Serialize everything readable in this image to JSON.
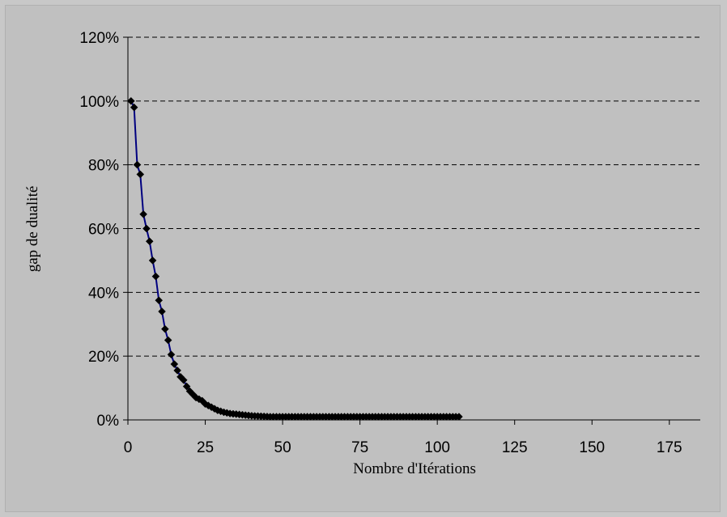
{
  "chart_data": {
    "type": "line",
    "xlabel": "Nombre d'Itérations",
    "ylabel": "gap de dualité",
    "xlim": [
      0,
      185
    ],
    "ylim": [
      0,
      120
    ],
    "x_ticks": [
      "0",
      "25",
      "50",
      "75",
      "100",
      "125",
      "150",
      "175"
    ],
    "y_ticks": [
      "0%",
      "20%",
      "40%",
      "60%",
      "80%",
      "100%",
      "120%"
    ],
    "grid": "horizontal dashed",
    "series": [
      {
        "color": "#000080",
        "marker": "diamond",
        "x": [
          1,
          2,
          3,
          4,
          5,
          6,
          7,
          8,
          9,
          10,
          11,
          12,
          13,
          14,
          15,
          16,
          17,
          18,
          19,
          20,
          21,
          22,
          23,
          24,
          25,
          26,
          27,
          28,
          29,
          30,
          31,
          32,
          33,
          34,
          35,
          36,
          37,
          38,
          39,
          40,
          41,
          42,
          43,
          44,
          45,
          46,
          47,
          48,
          49,
          50,
          51,
          52,
          53,
          54,
          55,
          56,
          57,
          58,
          59,
          60,
          61,
          62,
          63,
          64,
          65,
          66,
          67,
          68,
          69,
          70,
          71,
          72,
          73,
          74,
          75,
          76,
          77,
          78,
          79,
          80,
          81,
          82,
          83,
          84,
          85,
          86,
          87,
          88,
          89,
          90,
          91,
          92,
          93,
          94,
          95,
          96,
          97,
          98,
          99,
          100,
          101,
          102,
          103,
          104,
          105,
          106,
          107
        ],
        "values": [
          100,
          98,
          80,
          77,
          64.5,
          60,
          56,
          50,
          45,
          37.5,
          34,
          28.5,
          25,
          20.5,
          17.5,
          15.5,
          13.5,
          12.5,
          10.5,
          9,
          8,
          7,
          6.5,
          6,
          5,
          4.5,
          4,
          3.5,
          3,
          2.7,
          2.4,
          2.2,
          2,
          1.9,
          1.8,
          1.7,
          1.6,
          1.5,
          1.4,
          1.3,
          1.25,
          1.2,
          1.15,
          1.1,
          1.05,
          1,
          1,
          1,
          1,
          1,
          1,
          1,
          1,
          1,
          1,
          1,
          1,
          1,
          1,
          1,
          1,
          1,
          1,
          1,
          1,
          1,
          1,
          1,
          1,
          1,
          1,
          1,
          1,
          1,
          1,
          1,
          1,
          1,
          1,
          1,
          1,
          1,
          1,
          1,
          1,
          1,
          1,
          1,
          1,
          1,
          1,
          1,
          1,
          1,
          1,
          1,
          1,
          1,
          1,
          1,
          1,
          1,
          1,
          1,
          1,
          1,
          1
        ]
      }
    ]
  }
}
